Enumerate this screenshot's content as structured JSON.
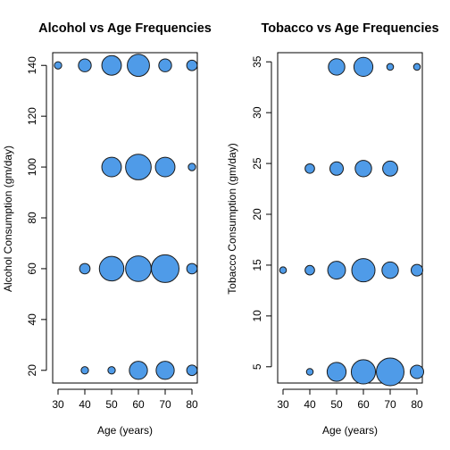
{
  "chart_data": [
    {
      "type": "scatter",
      "title": "Alcohol vs Age Frequencies",
      "xlabel": "Age (years)",
      "ylabel": "Alcohol Consumption (gm/day)",
      "xlim": [
        28,
        82
      ],
      "ylim": [
        15,
        145
      ],
      "xticks": [
        30,
        40,
        50,
        60,
        70,
        80
      ],
      "yticks": [
        20,
        40,
        60,
        80,
        100,
        120,
        140
      ],
      "color": "#4f9be8",
      "points": [
        {
          "x": 30,
          "y": 140,
          "size": 1
        },
        {
          "x": 40,
          "y": 140,
          "size": 3
        },
        {
          "x": 50,
          "y": 140,
          "size": 7
        },
        {
          "x": 60,
          "y": 140,
          "size": 9
        },
        {
          "x": 70,
          "y": 140,
          "size": 3
        },
        {
          "x": 80,
          "y": 140,
          "size": 2
        },
        {
          "x": 50,
          "y": 100,
          "size": 7
        },
        {
          "x": 60,
          "y": 100,
          "size": 12
        },
        {
          "x": 70,
          "y": 100,
          "size": 7
        },
        {
          "x": 80,
          "y": 100,
          "size": 1
        },
        {
          "x": 40,
          "y": 60,
          "size": 2
        },
        {
          "x": 50,
          "y": 60,
          "size": 11
        },
        {
          "x": 60,
          "y": 60,
          "size": 12
        },
        {
          "x": 70,
          "y": 60,
          "size": 14
        },
        {
          "x": 80,
          "y": 60,
          "size": 2
        },
        {
          "x": 40,
          "y": 20,
          "size": 1
        },
        {
          "x": 50,
          "y": 20,
          "size": 1
        },
        {
          "x": 60,
          "y": 20,
          "size": 6
        },
        {
          "x": 70,
          "y": 20,
          "size": 6
        },
        {
          "x": 80,
          "y": 20,
          "size": 2
        }
      ]
    },
    {
      "type": "scatter",
      "title": "Tobacco vs Age Frequencies",
      "xlabel": "Age (years)",
      "ylabel": "Tobacco Consumption (gm/day)",
      "xlim": [
        28,
        82
      ],
      "ylim": [
        3.4,
        35.9
      ],
      "xticks": [
        30,
        40,
        50,
        60,
        70,
        80
      ],
      "yticks": [
        5,
        10,
        15,
        20,
        25,
        30,
        35
      ],
      "color": "#4f9be8",
      "points": [
        {
          "x": 50,
          "y": 34.5,
          "size": 6
        },
        {
          "x": 60,
          "y": 34.5,
          "size": 8
        },
        {
          "x": 70,
          "y": 34.5,
          "size": 1
        },
        {
          "x": 80,
          "y": 34.5,
          "size": 1
        },
        {
          "x": 40,
          "y": 24.5,
          "size": 2
        },
        {
          "x": 50,
          "y": 24.5,
          "size": 4
        },
        {
          "x": 60,
          "y": 24.5,
          "size": 6
        },
        {
          "x": 70,
          "y": 24.5,
          "size": 5
        },
        {
          "x": 30,
          "y": 14.5,
          "size": 1
        },
        {
          "x": 40,
          "y": 14.5,
          "size": 2
        },
        {
          "x": 50,
          "y": 14.5,
          "size": 7
        },
        {
          "x": 60,
          "y": 14.5,
          "size": 12
        },
        {
          "x": 70,
          "y": 14.5,
          "size": 6
        },
        {
          "x": 80,
          "y": 14.5,
          "size": 3
        },
        {
          "x": 40,
          "y": 4.5,
          "size": 1
        },
        {
          "x": 50,
          "y": 4.5,
          "size": 8
        },
        {
          "x": 60,
          "y": 4.5,
          "size": 13
        },
        {
          "x": 70,
          "y": 4.5,
          "size": 17
        },
        {
          "x": 80,
          "y": 4.5,
          "size": 4
        }
      ]
    }
  ]
}
